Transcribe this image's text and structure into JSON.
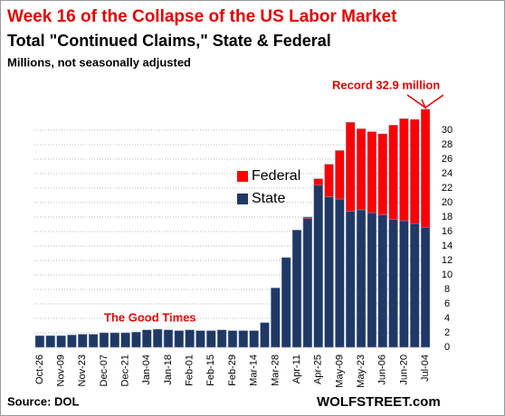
{
  "chart_data": {
    "type": "stacked-bar",
    "title": "Week 16 of the Collapse of the US Labor Market",
    "subtitle": "Total \"Continued Claims,\" State & Federal",
    "y_label": "Millions, not seasonally adjusted",
    "categories": [
      "Oct-26",
      null,
      "Nov-09",
      null,
      "Nov-23",
      null,
      "Dec-07",
      null,
      "Dec-21",
      null,
      "Jan-04",
      null,
      "Jan-18",
      null,
      "Feb-01",
      null,
      "Feb-15",
      null,
      "Feb-29",
      null,
      "Mar-14",
      null,
      "Mar-28",
      null,
      "Apr-11",
      null,
      "Apr-25",
      null,
      "May-09",
      null,
      "May-23",
      null,
      "Jun-06",
      null,
      "Jun-20",
      null,
      "Jul-04"
    ],
    "series": [
      {
        "name": "State",
        "color": "#1f3864",
        "values": [
          1.6,
          1.6,
          1.6,
          1.7,
          1.8,
          1.8,
          2.0,
          2.0,
          2.0,
          2.1,
          2.4,
          2.5,
          2.4,
          2.3,
          2.4,
          2.3,
          2.3,
          2.4,
          2.3,
          2.3,
          2.3,
          3.4,
          8.2,
          12.4,
          16.2,
          17.8,
          22.4,
          20.8,
          20.5,
          18.8,
          19.0,
          18.6,
          18.3,
          17.7,
          17.5,
          17.1,
          16.6
        ]
      },
      {
        "name": "Federal",
        "color": "#ff0000",
        "values": [
          0,
          0,
          0,
          0,
          0,
          0,
          0,
          0,
          0,
          0,
          0,
          0,
          0,
          0,
          0,
          0,
          0,
          0,
          0,
          0,
          0,
          0,
          0,
          0,
          0,
          0.2,
          0.9,
          4.5,
          6.7,
          12.3,
          11.2,
          11.2,
          11.2,
          13.0,
          14.1,
          14.4,
          16.3
        ]
      }
    ],
    "ylim": [
      0,
      33
    ],
    "yticks": [
      0,
      2,
      4,
      6,
      8,
      10,
      12,
      14,
      16,
      18,
      20,
      22,
      24,
      26,
      28,
      30
    ],
    "grid": true,
    "annotations": [
      "The Good Times",
      "Record 32.9 million"
    ],
    "source": "Source: DOL",
    "credit": "WOLFSTREET.com"
  }
}
